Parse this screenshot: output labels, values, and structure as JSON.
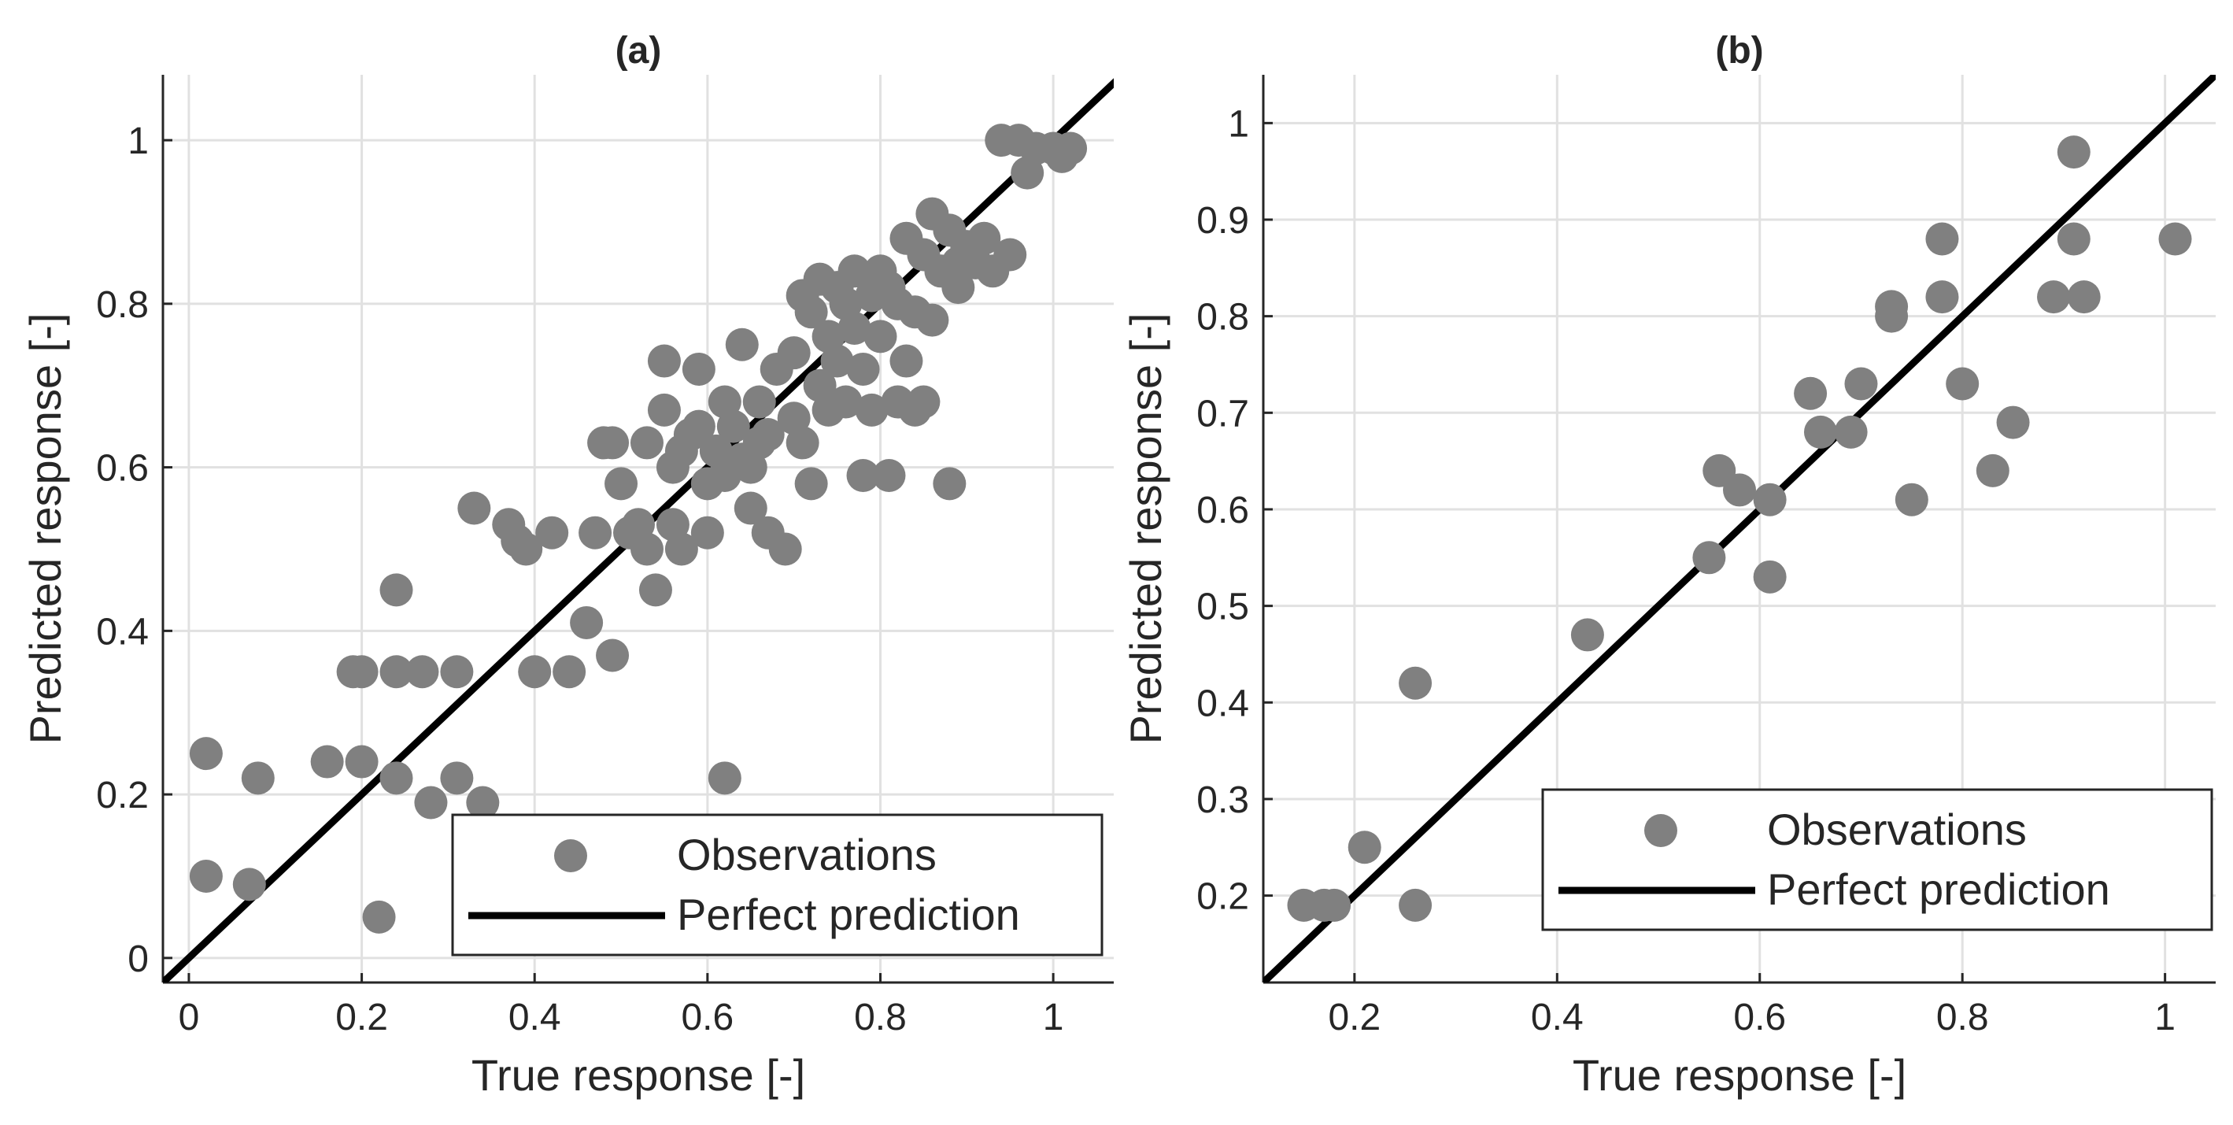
{
  "chart_data": [
    {
      "type": "scatter",
      "title": "(a)",
      "xlabel": "True response [-]",
      "ylabel": "Predicted response [-]",
      "xlim": [
        -0.03,
        1.07
      ],
      "ylim": [
        -0.03,
        1.08
      ],
      "xticks": [
        0,
        0.2,
        0.4,
        0.6,
        0.8,
        1
      ],
      "yticks": [
        0,
        0.2,
        0.4,
        0.6,
        0.8,
        1
      ],
      "xtick_labels": [
        "0",
        "0.2",
        "0.4",
        "0.6",
        "0.8",
        "1"
      ],
      "ytick_labels": [
        "0",
        "0.2",
        "0.4",
        "0.6",
        "0.8",
        "1"
      ],
      "grid": true,
      "legend": {
        "position": "bottom-right",
        "entries": [
          "Observations",
          "Perfect prediction"
        ]
      },
      "reference_line": {
        "name": "Perfect prediction",
        "slope": 1,
        "intercept": 0
      },
      "series": [
        {
          "name": "Observations",
          "color": "#808080",
          "points": [
            [
              0.02,
              0.25
            ],
            [
              0.02,
              0.1
            ],
            [
              0.07,
              0.09
            ],
            [
              0.08,
              0.22
            ],
            [
              0.16,
              0.24
            ],
            [
              0.19,
              0.35
            ],
            [
              0.2,
              0.35
            ],
            [
              0.2,
              0.24
            ],
            [
              0.22,
              0.05
            ],
            [
              0.24,
              0.22
            ],
            [
              0.24,
              0.35
            ],
            [
              0.24,
              0.45
            ],
            [
              0.27,
              0.35
            ],
            [
              0.28,
              0.19
            ],
            [
              0.31,
              0.35
            ],
            [
              0.31,
              0.22
            ],
            [
              0.33,
              0.55
            ],
            [
              0.34,
              0.19
            ],
            [
              0.37,
              0.53
            ],
            [
              0.38,
              0.51
            ],
            [
              0.39,
              0.5
            ],
            [
              0.4,
              0.35
            ],
            [
              0.42,
              0.52
            ],
            [
              0.44,
              0.35
            ],
            [
              0.46,
              0.41
            ],
            [
              0.47,
              0.52
            ],
            [
              0.48,
              0.63
            ],
            [
              0.49,
              0.37
            ],
            [
              0.49,
              0.63
            ],
            [
              0.5,
              0.58
            ],
            [
              0.51,
              0.52
            ],
            [
              0.52,
              0.53
            ],
            [
              0.53,
              0.5
            ],
            [
              0.53,
              0.63
            ],
            [
              0.54,
              0.45
            ],
            [
              0.55,
              0.73
            ],
            [
              0.55,
              0.67
            ],
            [
              0.56,
              0.53
            ],
            [
              0.56,
              0.6
            ],
            [
              0.57,
              0.5
            ],
            [
              0.57,
              0.62
            ],
            [
              0.58,
              0.64
            ],
            [
              0.59,
              0.72
            ],
            [
              0.59,
              0.65
            ],
            [
              0.6,
              0.58
            ],
            [
              0.6,
              0.52
            ],
            [
              0.61,
              0.62
            ],
            [
              0.62,
              0.59
            ],
            [
              0.62,
              0.68
            ],
            [
              0.62,
              0.22
            ],
            [
              0.63,
              0.65
            ],
            [
              0.64,
              0.61
            ],
            [
              0.64,
              0.75
            ],
            [
              0.65,
              0.55
            ],
            [
              0.65,
              0.6
            ],
            [
              0.66,
              0.63
            ],
            [
              0.66,
              0.68
            ],
            [
              0.67,
              0.64
            ],
            [
              0.67,
              0.52
            ],
            [
              0.68,
              0.72
            ],
            [
              0.69,
              0.5
            ],
            [
              0.7,
              0.66
            ],
            [
              0.7,
              0.74
            ],
            [
              0.71,
              0.81
            ],
            [
              0.71,
              0.63
            ],
            [
              0.72,
              0.58
            ],
            [
              0.72,
              0.79
            ],
            [
              0.73,
              0.83
            ],
            [
              0.73,
              0.7
            ],
            [
              0.74,
              0.67
            ],
            [
              0.74,
              0.76
            ],
            [
              0.75,
              0.82
            ],
            [
              0.75,
              0.73
            ],
            [
              0.76,
              0.8
            ],
            [
              0.76,
              0.68
            ],
            [
              0.77,
              0.84
            ],
            [
              0.77,
              0.77
            ],
            [
              0.78,
              0.59
            ],
            [
              0.78,
              0.72
            ],
            [
              0.79,
              0.81
            ],
            [
              0.79,
              0.67
            ],
            [
              0.8,
              0.84
            ],
            [
              0.8,
              0.76
            ],
            [
              0.81,
              0.82
            ],
            [
              0.81,
              0.59
            ],
            [
              0.82,
              0.8
            ],
            [
              0.82,
              0.68
            ],
            [
              0.83,
              0.88
            ],
            [
              0.83,
              0.73
            ],
            [
              0.84,
              0.79
            ],
            [
              0.84,
              0.67
            ],
            [
              0.85,
              0.86
            ],
            [
              0.85,
              0.68
            ],
            [
              0.86,
              0.91
            ],
            [
              0.86,
              0.78
            ],
            [
              0.87,
              0.84
            ],
            [
              0.88,
              0.89
            ],
            [
              0.88,
              0.58
            ],
            [
              0.89,
              0.85
            ],
            [
              0.89,
              0.82
            ],
            [
              0.9,
              0.87
            ],
            [
              0.91,
              0.85
            ],
            [
              0.92,
              0.88
            ],
            [
              0.93,
              0.84
            ],
            [
              0.94,
              1.0
            ],
            [
              0.95,
              0.86
            ],
            [
              0.96,
              1.0
            ],
            [
              0.97,
              0.96
            ],
            [
              0.98,
              0.99
            ],
            [
              1.0,
              0.99
            ],
            [
              1.01,
              0.98
            ],
            [
              1.02,
              0.99
            ]
          ]
        }
      ]
    },
    {
      "type": "scatter",
      "title": "(b)",
      "xlabel": "True response [-]",
      "ylabel": "Predicted response [-]",
      "xlim": [
        0.11,
        1.05
      ],
      "ylim": [
        0.11,
        1.05
      ],
      "xticks": [
        0.2,
        0.4,
        0.6,
        0.8,
        1
      ],
      "yticks": [
        0.2,
        0.3,
        0.4,
        0.5,
        0.6,
        0.7,
        0.8,
        0.9,
        1
      ],
      "xtick_labels": [
        "0.2",
        "0.4",
        "0.6",
        "0.8",
        "1"
      ],
      "ytick_labels": [
        "0.2",
        "0.3",
        "0.4",
        "0.5",
        "0.6",
        "0.7",
        "0.8",
        "0.9",
        "1"
      ],
      "grid": true,
      "legend": {
        "position": "bottom-right",
        "entries": [
          "Observations",
          "Perfect prediction"
        ]
      },
      "reference_line": {
        "name": "Perfect prediction",
        "slope": 1,
        "intercept": 0
      },
      "series": [
        {
          "name": "Observations",
          "color": "#808080",
          "points": [
            [
              0.15,
              0.19
            ],
            [
              0.17,
              0.19
            ],
            [
              0.18,
              0.19
            ],
            [
              0.21,
              0.25
            ],
            [
              0.26,
              0.19
            ],
            [
              0.26,
              0.42
            ],
            [
              0.43,
              0.47
            ],
            [
              0.55,
              0.55
            ],
            [
              0.56,
              0.64
            ],
            [
              0.58,
              0.62
            ],
            [
              0.61,
              0.61
            ],
            [
              0.61,
              0.53
            ],
            [
              0.65,
              0.72
            ],
            [
              0.66,
              0.68
            ],
            [
              0.69,
              0.68
            ],
            [
              0.7,
              0.73
            ],
            [
              0.73,
              0.81
            ],
            [
              0.73,
              0.8
            ],
            [
              0.75,
              0.61
            ],
            [
              0.78,
              0.88
            ],
            [
              0.78,
              0.82
            ],
            [
              0.8,
              0.73
            ],
            [
              0.83,
              0.64
            ],
            [
              0.85,
              0.69
            ],
            [
              0.89,
              0.82
            ],
            [
              0.91,
              0.97
            ],
            [
              0.91,
              0.88
            ],
            [
              0.92,
              0.82
            ],
            [
              1.01,
              0.88
            ]
          ]
        }
      ]
    }
  ]
}
